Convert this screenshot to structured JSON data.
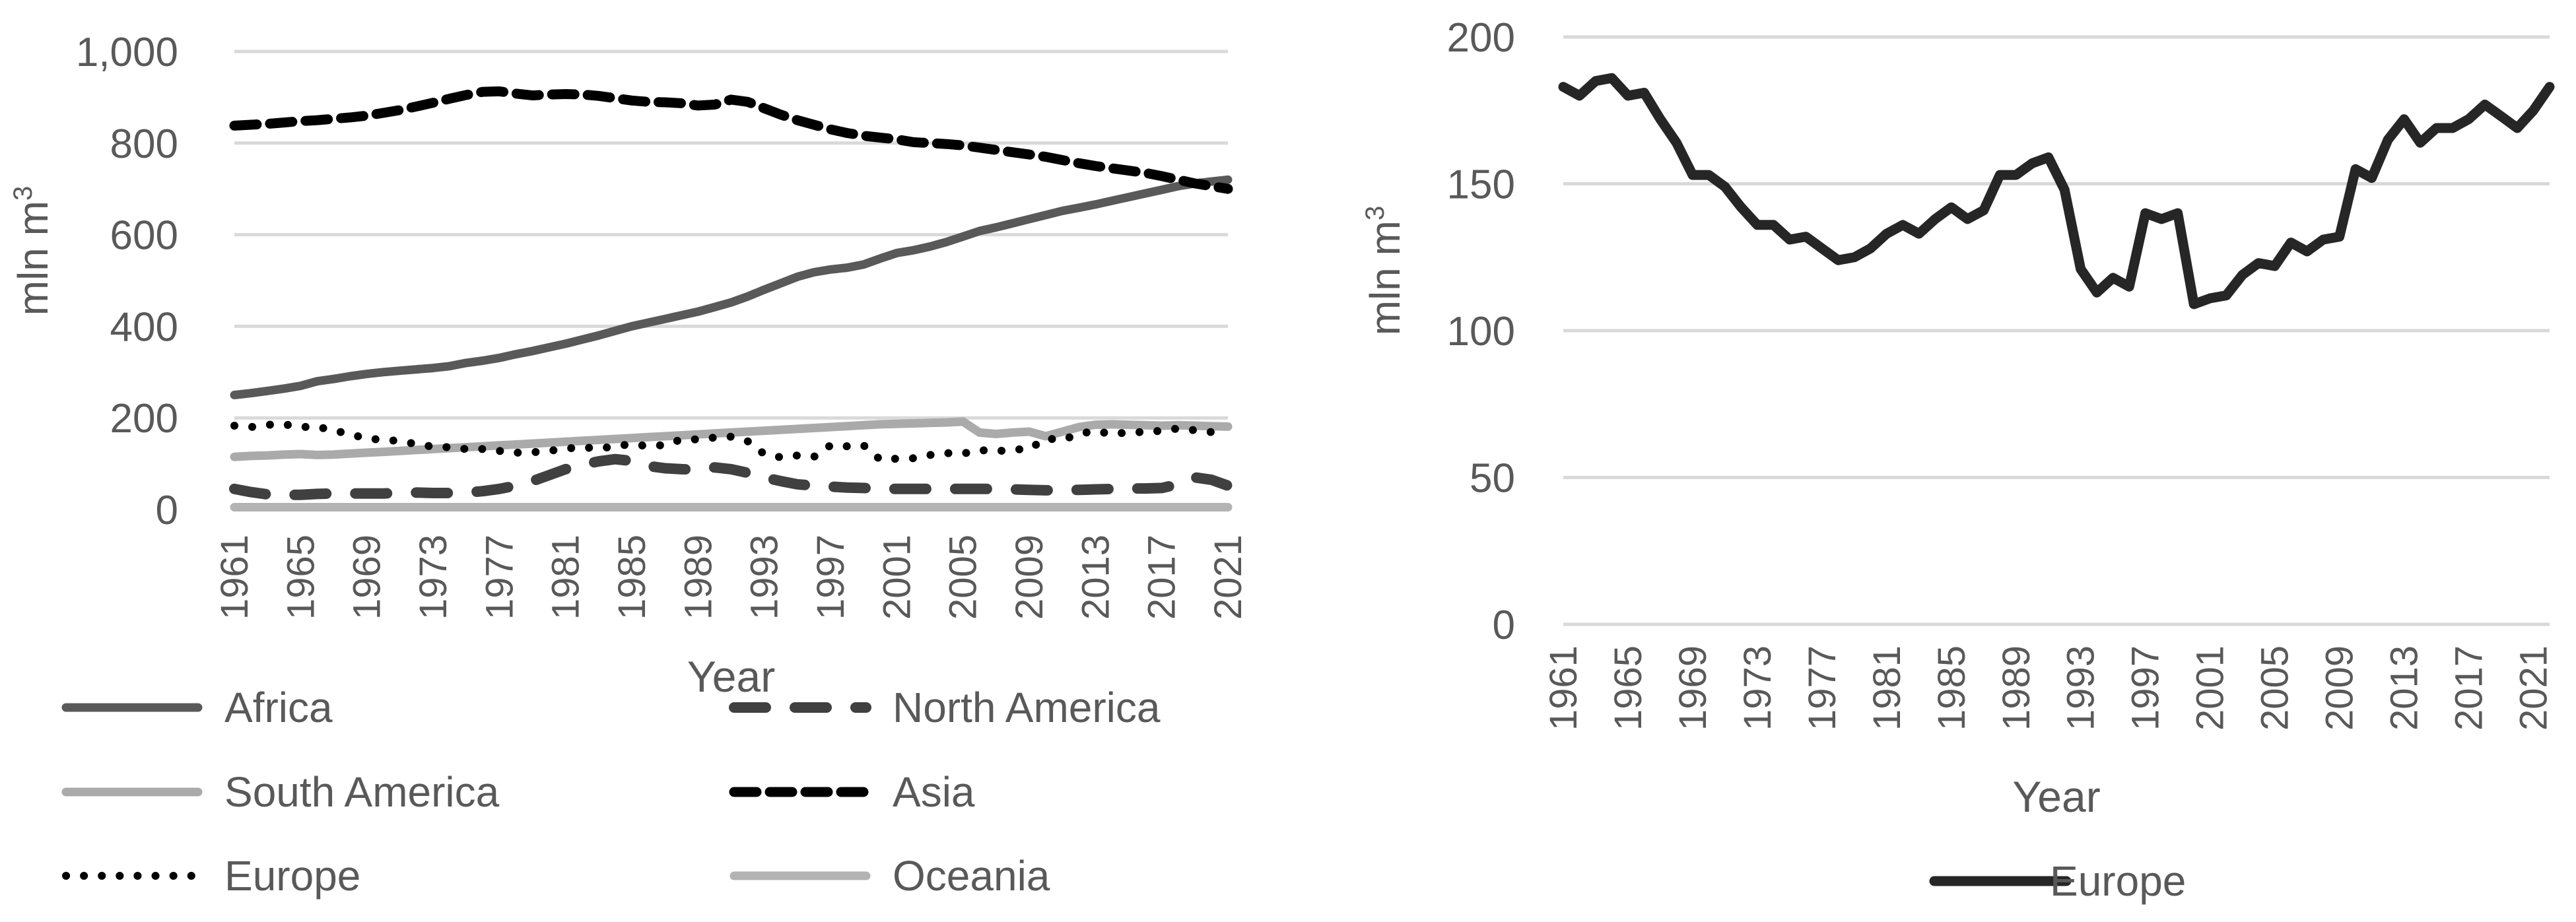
{
  "chart_data": [
    {
      "type": "line",
      "title": "",
      "xlabel": "Year",
      "ylabel": "mln m",
      "ylabel_superscript": "3",
      "ylim": [
        0,
        1000
      ],
      "y_ticks": [
        "0",
        "200",
        "400",
        "600",
        "800",
        "1,000"
      ],
      "y_tick_values": [
        0,
        200,
        400,
        600,
        800,
        1000
      ],
      "x": [
        1961,
        1962,
        1963,
        1964,
        1965,
        1966,
        1967,
        1968,
        1969,
        1970,
        1971,
        1972,
        1973,
        1974,
        1975,
        1976,
        1977,
        1978,
        1979,
        1980,
        1981,
        1982,
        1983,
        1984,
        1985,
        1986,
        1987,
        1988,
        1989,
        1990,
        1991,
        1992,
        1993,
        1994,
        1995,
        1996,
        1997,
        1998,
        1999,
        2000,
        2001,
        2002,
        2003,
        2004,
        2005,
        2006,
        2007,
        2008,
        2009,
        2010,
        2011,
        2012,
        2013,
        2014,
        2015,
        2016,
        2017,
        2018,
        2019,
        2020,
        2021
      ],
      "x_tick_labels": [
        "1961",
        "1965",
        "1969",
        "1973",
        "1977",
        "1981",
        "1985",
        "1989",
        "1993",
        "1997",
        "2001",
        "2005",
        "2009",
        "2013",
        "2017",
        "2021"
      ],
      "grid": true,
      "legend_position": "bottom",
      "series": [
        {
          "name": "Africa",
          "style": "solid-dark",
          "color": "#595959",
          "values": [
            250,
            254,
            259,
            264,
            270,
            280,
            285,
            291,
            296,
            300,
            303,
            306,
            309,
            313,
            320,
            325,
            331,
            339,
            346,
            354,
            362,
            371,
            380,
            390,
            400,
            408,
            416,
            424,
            432,
            442,
            452,
            465,
            480,
            494,
            508,
            518,
            524,
            528,
            535,
            548,
            560,
            566,
            574,
            584,
            596,
            608,
            616,
            625,
            634,
            643,
            652,
            659,
            666,
            674,
            682,
            690,
            698,
            706,
            712,
            716,
            720
          ]
        },
        {
          "name": "North America",
          "style": "long-dash",
          "color": "#404040",
          "values": [
            45,
            38,
            33,
            32,
            32,
            34,
            35,
            35,
            35,
            35,
            36,
            37,
            36,
            36,
            37,
            40,
            45,
            52,
            62,
            75,
            88,
            98,
            105,
            110,
            106,
            95,
            90,
            88,
            87,
            92,
            88,
            80,
            70,
            62,
            55,
            52,
            50,
            48,
            47,
            46,
            45,
            45,
            45,
            45,
            45,
            45,
            45,
            44,
            43,
            42,
            42,
            43,
            44,
            45,
            46,
            46,
            47,
            55,
            70,
            65,
            52
          ]
        },
        {
          "name": "South America",
          "style": "solid-light",
          "color": "#aaaaaa",
          "values": [
            115,
            117,
            118,
            120,
            121,
            119,
            120,
            122,
            124,
            126,
            128,
            130,
            132,
            134,
            136,
            138,
            140,
            142,
            144,
            146,
            148,
            150,
            152,
            154,
            156,
            158,
            160,
            162,
            164,
            166,
            168,
            170,
            172,
            174,
            176,
            178,
            180,
            182,
            184,
            186,
            187,
            188,
            189,
            190,
            192,
            168,
            165,
            168,
            170,
            160,
            170,
            180,
            185,
            186,
            185,
            184,
            183,
            184,
            183,
            182,
            181
          ]
        },
        {
          "name": "Asia",
          "style": "dash",
          "color": "#000000",
          "values": [
            838,
            840,
            842,
            845,
            848,
            850,
            853,
            856,
            860,
            866,
            872,
            880,
            888,
            897,
            905,
            912,
            913,
            908,
            904,
            906,
            907,
            906,
            903,
            898,
            893,
            890,
            889,
            887,
            882,
            884,
            895,
            890,
            876,
            862,
            850,
            840,
            830,
            822,
            816,
            812,
            808,
            802,
            800,
            798,
            795,
            790,
            785,
            780,
            775,
            770,
            763,
            756,
            750,
            745,
            740,
            735,
            728,
            720,
            712,
            706,
            700
          ]
        },
        {
          "name": "Europe",
          "style": "dotted",
          "color": "#000000",
          "values": [
            183,
            180,
            185,
            186,
            180,
            181,
            172,
            165,
            154,
            153,
            149,
            143,
            137,
            136,
            132,
            132,
            128,
            124,
            125,
            128,
            133,
            136,
            133,
            138,
            143,
            138,
            141,
            153,
            153,
            157,
            159,
            149,
            121,
            114,
            118,
            115,
            140,
            138,
            140,
            109,
            111,
            112,
            119,
            123,
            122,
            130,
            127,
            131,
            132,
            155,
            152,
            165,
            172,
            164,
            169,
            169,
            172,
            177,
            173,
            169,
            175
          ]
        },
        {
          "name": "Oceania",
          "style": "solid-light",
          "color": "#b3b3b3",
          "values": [
            5,
            5,
            5,
            5,
            5,
            5,
            5,
            5,
            5,
            5,
            5,
            5,
            5,
            5,
            5,
            5,
            5,
            5,
            5,
            5,
            5,
            5,
            5,
            5,
            5,
            5,
            5,
            5,
            5,
            5,
            5,
            5,
            5,
            5,
            5,
            5,
            5,
            5,
            5,
            5,
            5,
            5,
            5,
            5,
            5,
            5,
            5,
            5,
            5,
            5,
            5,
            5,
            5,
            5,
            5,
            5,
            5,
            5,
            5,
            5,
            5
          ]
        }
      ]
    },
    {
      "type": "line",
      "title": "",
      "xlabel": "Year",
      "ylabel": "mln m",
      "ylabel_superscript": "3",
      "ylim": [
        0,
        200
      ],
      "y_ticks": [
        "0",
        "50",
        "100",
        "150",
        "200"
      ],
      "y_tick_values": [
        0,
        50,
        100,
        150,
        200
      ],
      "x": [
        1961,
        1962,
        1963,
        1964,
        1965,
        1966,
        1967,
        1968,
        1969,
        1970,
        1971,
        1972,
        1973,
        1974,
        1975,
        1976,
        1977,
        1978,
        1979,
        1980,
        1981,
        1982,
        1983,
        1984,
        1985,
        1986,
        1987,
        1988,
        1989,
        1990,
        1991,
        1992,
        1993,
        1994,
        1995,
        1996,
        1997,
        1998,
        1999,
        2000,
        2001,
        2002,
        2003,
        2004,
        2005,
        2006,
        2007,
        2008,
        2009,
        2010,
        2011,
        2012,
        2013,
        2014,
        2015,
        2016,
        2017,
        2018,
        2019,
        2020,
        2021,
        2022
      ],
      "x_tick_labels": [
        "1961",
        "1965",
        "1969",
        "1973",
        "1977",
        "1981",
        "1985",
        "1989",
        "1993",
        "1997",
        "2001",
        "2005",
        "2009",
        "2013",
        "2017",
        "2021"
      ],
      "grid": true,
      "legend_position": "bottom",
      "series": [
        {
          "name": "Europe",
          "style": "solid",
          "color": "#262626",
          "values": [
            183,
            180,
            185,
            186,
            180,
            181,
            172,
            164,
            153,
            153,
            149,
            142,
            136,
            136,
            131,
            132,
            128,
            124,
            125,
            128,
            133,
            136,
            133,
            138,
            142,
            138,
            141,
            153,
            153,
            157,
            159,
            148,
            121,
            113,
            118,
            115,
            140,
            138,
            140,
            109,
            111,
            112,
            119,
            123,
            122,
            130,
            127,
            131,
            132,
            155,
            152,
            165,
            172,
            164,
            169,
            169,
            172,
            177,
            173,
            169,
            175,
            183
          ]
        }
      ]
    }
  ]
}
